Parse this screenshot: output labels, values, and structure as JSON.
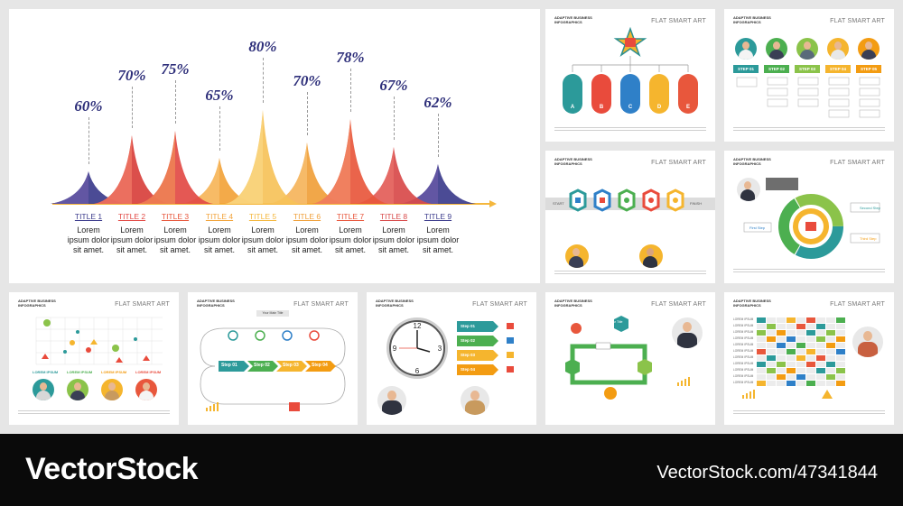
{
  "main": {
    "percents": [
      "60%",
      "70%",
      "75%",
      "65%",
      "80%",
      "70%",
      "78%",
      "67%",
      "62%"
    ],
    "titles": [
      "TITLE 1",
      "TITLE 2",
      "TITLE 3",
      "TITLE 4",
      "TITLE 5",
      "TITLE 6",
      "TITLE 7",
      "TITLE 8",
      "TITLE 9"
    ],
    "desc": "Lorem ipsum dolor sit amet.",
    "title_colors": [
      "#3c3c8c",
      "#e24a45",
      "#e7563b",
      "#f2a33a",
      "#f4b73d",
      "#f0a03a",
      "#e8573c",
      "#d84a4a",
      "#3c3c8c"
    ]
  },
  "cards": {
    "brand": "ADAPTIVE BUSINESS INFOGRAPHICS",
    "flat_smart_art": "FLAT SMART ART",
    "card2": {
      "letters": [
        "A",
        "B",
        "C",
        "D",
        "E"
      ],
      "pill_label": "Your Title"
    },
    "card3": {
      "steps": [
        "STEP 01",
        "STEP 02",
        "STEP 03",
        "STEP 04",
        "STEP 05"
      ]
    },
    "card4": {
      "start": "START",
      "finish": "FINISH",
      "title": "Your Title"
    },
    "card5": {
      "labels": [
        "Your Step",
        "Second Step",
        "Third Step",
        "First Step"
      ]
    },
    "card6": {
      "labels": [
        "LOREM IPSUM",
        "LOREM IPSUM",
        "LOREM IPSUM",
        "LOREM IPSUM"
      ]
    },
    "card7": {
      "steps": [
        "Step 01",
        "Step 02",
        "Step 03",
        "Step 04"
      ],
      "title": "Your Main Title"
    },
    "card8": {
      "steps": [
        "Step 01",
        "Step 02",
        "Step 03",
        "Step 04"
      ]
    },
    "card9": {
      "title": "Your Title"
    },
    "card10": {
      "row_label": "LOREM IPSUM"
    }
  },
  "watermark": {
    "logo": "VectorStock",
    "url": "VectorStock.com/47341844"
  }
}
